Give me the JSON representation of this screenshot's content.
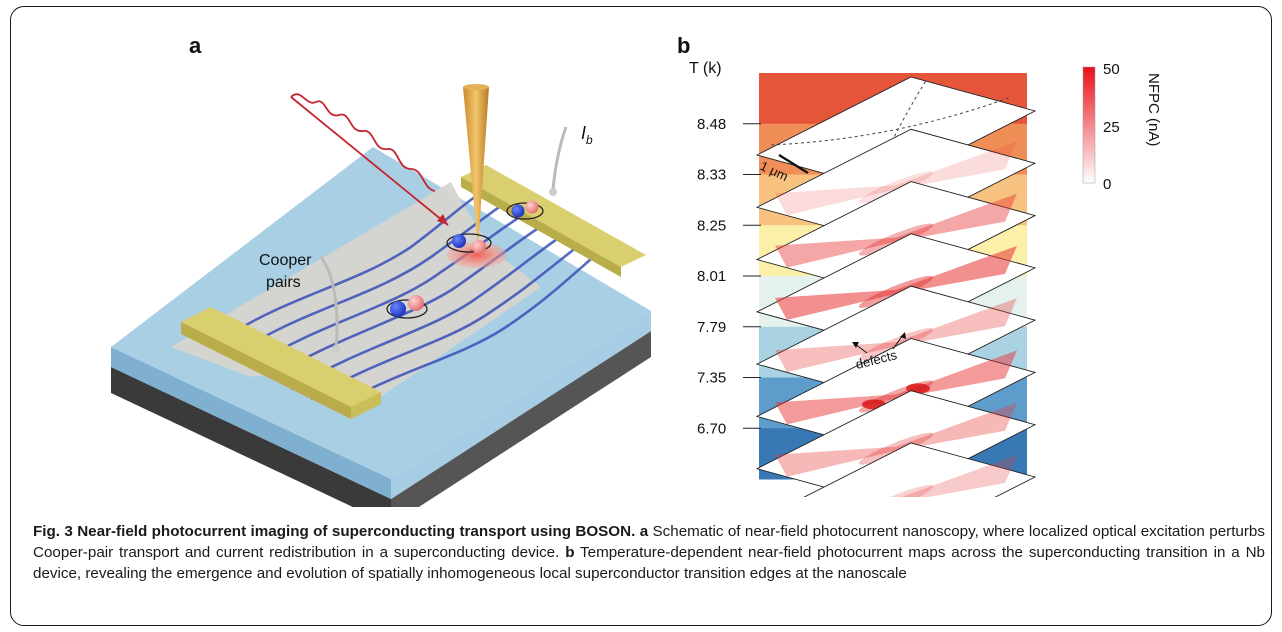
{
  "panel_a": {
    "letter": "a",
    "label_cooper_line1": "Cooper",
    "label_cooper_line2": "pairs",
    "label_current": "I",
    "label_current_sub": "b"
  },
  "panel_b": {
    "letter": "b",
    "temp_axis_label": "T (k)",
    "temperatures": [
      "8.48",
      "8.33",
      "8.25",
      "8.01",
      "7.79",
      "7.35",
      "6.70"
    ],
    "temp_colors": [
      "#e5553a",
      "#f08e58",
      "#f7c27f",
      "#fbefaa",
      "#e4f1ec",
      "#a9d3e3",
      "#5e9ccc",
      "#3878b4"
    ],
    "scale_bar": "1 μm",
    "defects_label": "defects",
    "colorbar": {
      "label": "NFPC (nA)",
      "ticks": [
        "50",
        "25",
        "0"
      ],
      "top_color": "#e8101a",
      "bottom_color": "#ffffff"
    }
  },
  "caption": {
    "bold": "Fig. 3 Near-field photocurrent imaging of superconducting transport using BOSON.",
    "a_letter": "a",
    "a_text": " Schematic of near-field photocurrent nanoscopy, where localized optical excitation perturbs Cooper-pair transport and current redistribution in a superconducting device. ",
    "b_letter": "b",
    "b_text": " Temperature-dependent near-field photocurrent maps across the superconducting transition in a Nb device, revealing the emergence and evolution of spatially inhomogeneous local superconductor transition edges at the nanoscale"
  }
}
